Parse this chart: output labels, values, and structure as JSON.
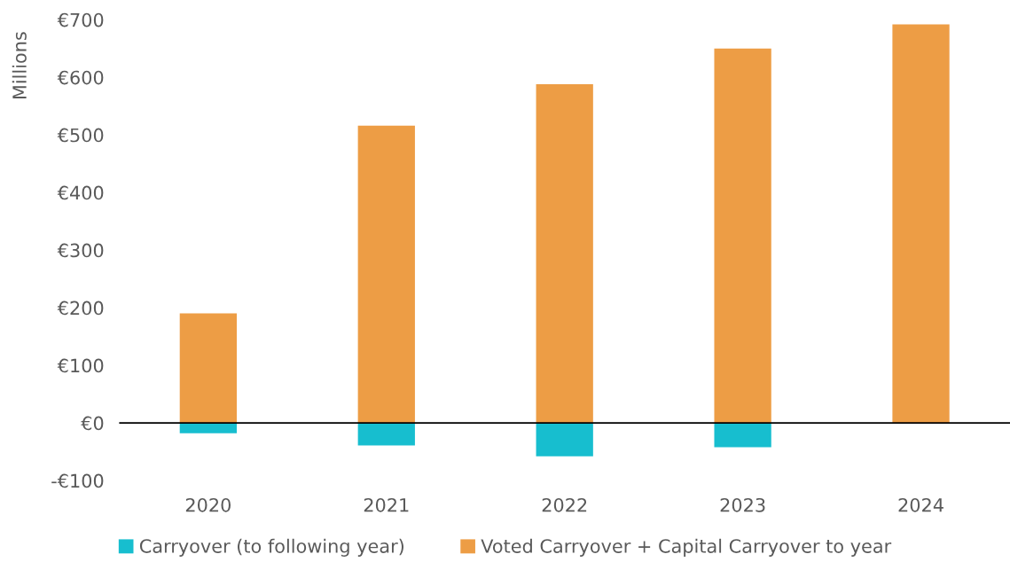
{
  "chart_data": {
    "type": "bar",
    "ylabel": "Millions",
    "categories": [
      "2020",
      "2021",
      "2022",
      "2023",
      "2024"
    ],
    "series": [
      {
        "name": "Carryover (to following year)",
        "color": "#17becf",
        "values": [
          -18,
          -39,
          -58,
          -42,
          0
        ]
      },
      {
        "name": "Voted Carryover + Capital Carryover to year",
        "color": "#ed9d45",
        "values": [
          190,
          516,
          588,
          650,
          692
        ]
      }
    ],
    "stacked": true,
    "ylim": [
      -100,
      700
    ],
    "yticks": [
      {
        "value": -100,
        "label": "-€100"
      },
      {
        "value": 0,
        "label": "€0"
      },
      {
        "value": 100,
        "label": "€100"
      },
      {
        "value": 200,
        "label": "€200"
      },
      {
        "value": 300,
        "label": "€300"
      },
      {
        "value": 400,
        "label": "€400"
      },
      {
        "value": 500,
        "label": "€500"
      },
      {
        "value": 600,
        "label": "€600"
      },
      {
        "value": 700,
        "label": "€700"
      }
    ],
    "grid": false,
    "ref_lines": [
      {
        "axis": "y",
        "value": 0,
        "color": "#000000"
      }
    ],
    "legend": "bottom"
  }
}
